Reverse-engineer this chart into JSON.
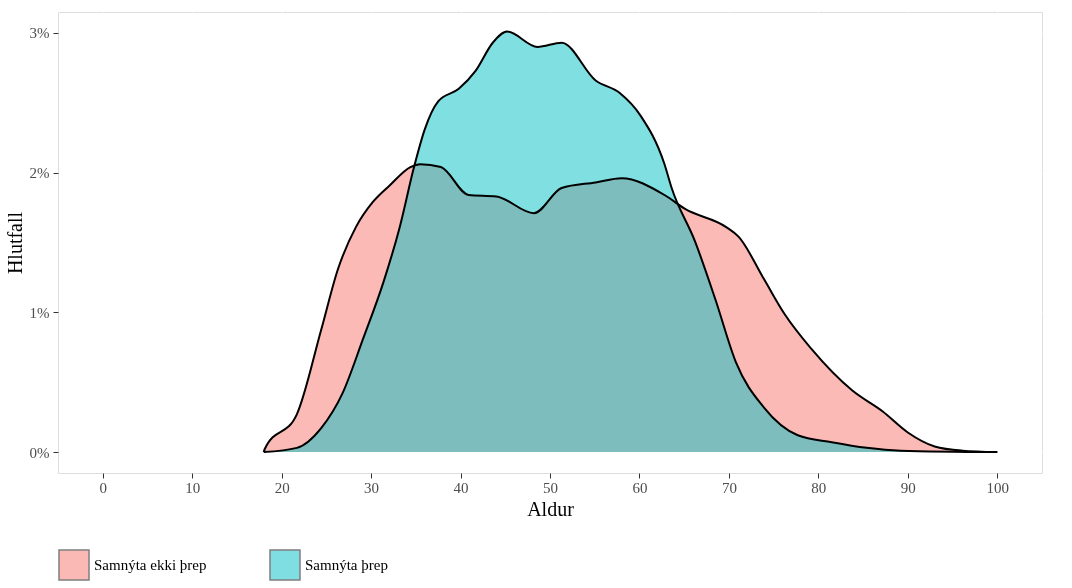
{
  "chart_data": {
    "type": "area",
    "xlabel": "Aldur",
    "ylabel": "Hlutfall",
    "xlim": [
      -5,
      105
    ],
    "ylim": [
      -0.15,
      3.15
    ],
    "xticks": [
      0,
      10,
      20,
      30,
      40,
      50,
      60,
      70,
      80,
      90,
      100
    ],
    "yticks": [
      {
        "value": 0,
        "label": "0%"
      },
      {
        "value": 1,
        "label": "1%"
      },
      {
        "value": 2,
        "label": "2%"
      },
      {
        "value": 3,
        "label": "3%"
      }
    ],
    "grid": true,
    "legend": "bottom",
    "series": [
      {
        "name": "Samnýta ekki þrep",
        "color": "#f8766d",
        "x": [
          18,
          18.1,
          21.7,
          24.4,
          26.3,
          28.3,
          30.2,
          32.1,
          34.4,
          35.5,
          37.8,
          40.9,
          44,
          48.2,
          51.3,
          55.1,
          58,
          62.8,
          65.1,
          69.7,
          71.1,
          73.9,
          76.2,
          79.2,
          83.8,
          87.2,
          90,
          93,
          96.1,
          100
        ],
        "values": [
          0,
          0.02,
          0.27,
          0.87,
          1.31,
          1.61,
          1.79,
          1.91,
          2.04,
          2.06,
          2.04,
          1.84,
          1.83,
          1.71,
          1.89,
          1.93,
          1.96,
          1.84,
          1.74,
          1.61,
          1.54,
          1.24,
          0.99,
          0.74,
          0.44,
          0.29,
          0.14,
          0.04,
          0.01,
          0
        ]
      },
      {
        "name": "Samnýta þrep",
        "color": "#00bfc4",
        "x": [
          18,
          21.7,
          24.4,
          26.8,
          29.1,
          31.4,
          33.2,
          34.8,
          36,
          37.5,
          39.8,
          41.7,
          43.6,
          45.2,
          48.6,
          51.3,
          55.1,
          57.8,
          60.1,
          62.8,
          63.6,
          66.2,
          68.5,
          70.8,
          73.9,
          77.7,
          81.5,
          85.4,
          89.2,
          100
        ],
        "values": [
          0,
          0.03,
          0.17,
          0.42,
          0.81,
          1.22,
          1.61,
          2.04,
          2.31,
          2.51,
          2.6,
          2.73,
          2.93,
          3.01,
          2.9,
          2.93,
          2.66,
          2.57,
          2.41,
          2.06,
          1.89,
          1.51,
          1.09,
          0.64,
          0.32,
          0.12,
          0.07,
          0.03,
          0.01,
          0
        ]
      }
    ]
  }
}
